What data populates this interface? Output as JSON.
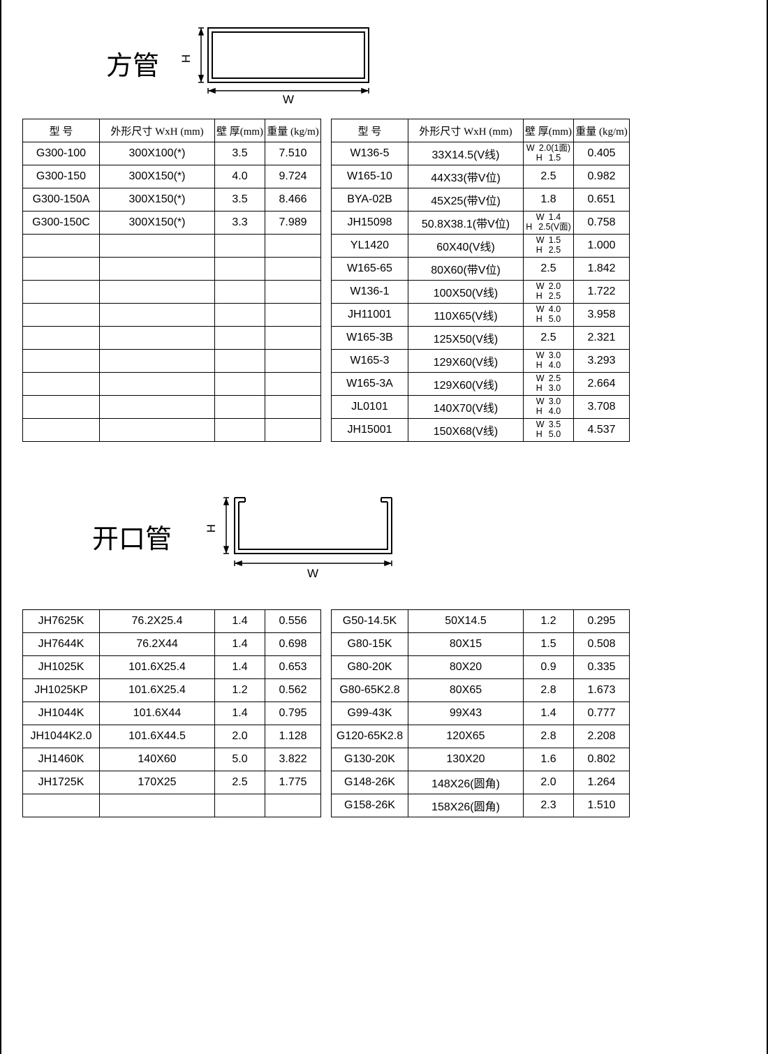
{
  "colors": {
    "fg": "#000000",
    "bg": "#ffffff"
  },
  "headers": {
    "model": "型 号",
    "dim": "外形尺寸 WxH (mm)",
    "thk": "壁 厚(mm)",
    "wt": "重量 (kg/m)"
  },
  "section1": {
    "title": "方管",
    "diagram": {
      "w_label": "W",
      "h_label": "H",
      "type": "closed-tube"
    },
    "left_rows": [
      {
        "model": "G300-100",
        "dim": "300X100(*)",
        "thk": "3.5",
        "wt": "7.510"
      },
      {
        "model": "G300-150",
        "dim": "300X150(*)",
        "thk": "4.0",
        "wt": "9.724"
      },
      {
        "model": "G300-150A",
        "dim": "300X150(*)",
        "thk": "3.5",
        "wt": "8.466"
      },
      {
        "model": "G300-150C",
        "dim": "300X150(*)",
        "thk": "3.3",
        "wt": "7.989"
      },
      {
        "model": "",
        "dim": "",
        "thk": "",
        "wt": ""
      },
      {
        "model": "",
        "dim": "",
        "thk": "",
        "wt": ""
      },
      {
        "model": "",
        "dim": "",
        "thk": "",
        "wt": ""
      },
      {
        "model": "",
        "dim": "",
        "thk": "",
        "wt": ""
      },
      {
        "model": "",
        "dim": "",
        "thk": "",
        "wt": ""
      },
      {
        "model": "",
        "dim": "",
        "thk": "",
        "wt": ""
      },
      {
        "model": "",
        "dim": "",
        "thk": "",
        "wt": ""
      },
      {
        "model": "",
        "dim": "",
        "thk": "",
        "wt": ""
      },
      {
        "model": "",
        "dim": "",
        "thk": "",
        "wt": ""
      }
    ],
    "right_rows": [
      {
        "model": "W136-5",
        "dim": "33X14.5(V线)",
        "thk_stacked": {
          "w": "2.0(1面)",
          "h": "1.5"
        },
        "wt": "0.405"
      },
      {
        "model": "W165-10",
        "dim": "44X33(带V位)",
        "thk": "2.5",
        "wt": "0.982"
      },
      {
        "model": "BYA-02B",
        "dim": "45X25(带V位)",
        "thk": "1.8",
        "wt": "0.651"
      },
      {
        "model": "JH15098",
        "dim": "50.8X38.1(带V位)",
        "thk_stacked": {
          "w": "1.4",
          "h": "2.5(V面)"
        },
        "wt": "0.758"
      },
      {
        "model": "YL1420",
        "dim": "60X40(V线)",
        "thk_stacked": {
          "w": "1.5",
          "h": "2.5"
        },
        "wt": "1.000"
      },
      {
        "model": "W165-65",
        "dim": "80X60(带V位)",
        "thk": "2.5",
        "wt": "1.842"
      },
      {
        "model": "W136-1",
        "dim": "100X50(V线)",
        "thk_stacked": {
          "w": "2.0",
          "h": "2.5"
        },
        "wt": "1.722"
      },
      {
        "model": "JH11001",
        "dim": "110X65(V线)",
        "thk_stacked": {
          "w": "4.0",
          "h": "5.0"
        },
        "wt": "3.958"
      },
      {
        "model": "W165-3B",
        "dim": "125X50(V线)",
        "thk": "2.5",
        "wt": "2.321"
      },
      {
        "model": "W165-3",
        "dim": "129X60(V线)",
        "thk_stacked": {
          "w": "3.0",
          "h": "4.0"
        },
        "wt": "3.293"
      },
      {
        "model": "W165-3A",
        "dim": "129X60(V线)",
        "thk_stacked": {
          "w": "2.5",
          "h": "3.0"
        },
        "wt": "2.664"
      },
      {
        "model": "JL0101",
        "dim": "140X70(V线)",
        "thk_stacked": {
          "w": "3.0",
          "h": "4.0"
        },
        "wt": "3.708"
      },
      {
        "model": "JH15001",
        "dim": "150X68(V线)",
        "thk_stacked": {
          "w": "3.5",
          "h": "5.0"
        },
        "wt": "4.537"
      }
    ]
  },
  "section2": {
    "title": "开口管",
    "diagram": {
      "w_label": "W",
      "h_label": "H",
      "type": "open-tube"
    },
    "left_rows": [
      {
        "model": "JH7625K",
        "dim": "76.2X25.4",
        "thk": "1.4",
        "wt": "0.556"
      },
      {
        "model": "JH7644K",
        "dim": "76.2X44",
        "thk": "1.4",
        "wt": "0.698"
      },
      {
        "model": "JH1025K",
        "dim": "101.6X25.4",
        "thk": "1.4",
        "wt": "0.653"
      },
      {
        "model": "JH1025KP",
        "dim": "101.6X25.4",
        "thk": "1.2",
        "wt": "0.562"
      },
      {
        "model": "JH1044K",
        "dim": "101.6X44",
        "thk": "1.4",
        "wt": "0.795"
      },
      {
        "model": "JH1044K2.0",
        "dim": "101.6X44.5",
        "thk": "2.0",
        "wt": "1.128"
      },
      {
        "model": "JH1460K",
        "dim": "140X60",
        "thk": "5.0",
        "wt": "3.822"
      },
      {
        "model": "JH1725K",
        "dim": "170X25",
        "thk": "2.5",
        "wt": "1.775"
      },
      {
        "model": "",
        "dim": "",
        "thk": "",
        "wt": ""
      }
    ],
    "right_rows": [
      {
        "model": "G50-14.5K",
        "dim": "50X14.5",
        "thk": "1.2",
        "wt": "0.295"
      },
      {
        "model": "G80-15K",
        "dim": "80X15",
        "thk": "1.5",
        "wt": "0.508"
      },
      {
        "model": "G80-20K",
        "dim": "80X20",
        "thk": "0.9",
        "wt": "0.335"
      },
      {
        "model": "G80-65K2.8",
        "dim": "80X65",
        "thk": "2.8",
        "wt": "1.673"
      },
      {
        "model": "G99-43K",
        "dim": "99X43",
        "thk": "1.4",
        "wt": "0.777"
      },
      {
        "model": "G120-65K2.8",
        "dim": "120X65",
        "thk": "2.8",
        "wt": "2.208"
      },
      {
        "model": "G130-20K",
        "dim": "130X20",
        "thk": "1.6",
        "wt": "0.802"
      },
      {
        "model": "G148-26K",
        "dim": "148X26(圆角)",
        "thk": "2.0",
        "wt": "1.264"
      },
      {
        "model": "G158-26K",
        "dim": "158X26(圆角)",
        "thk": "2.3",
        "wt": "1.510"
      }
    ]
  }
}
